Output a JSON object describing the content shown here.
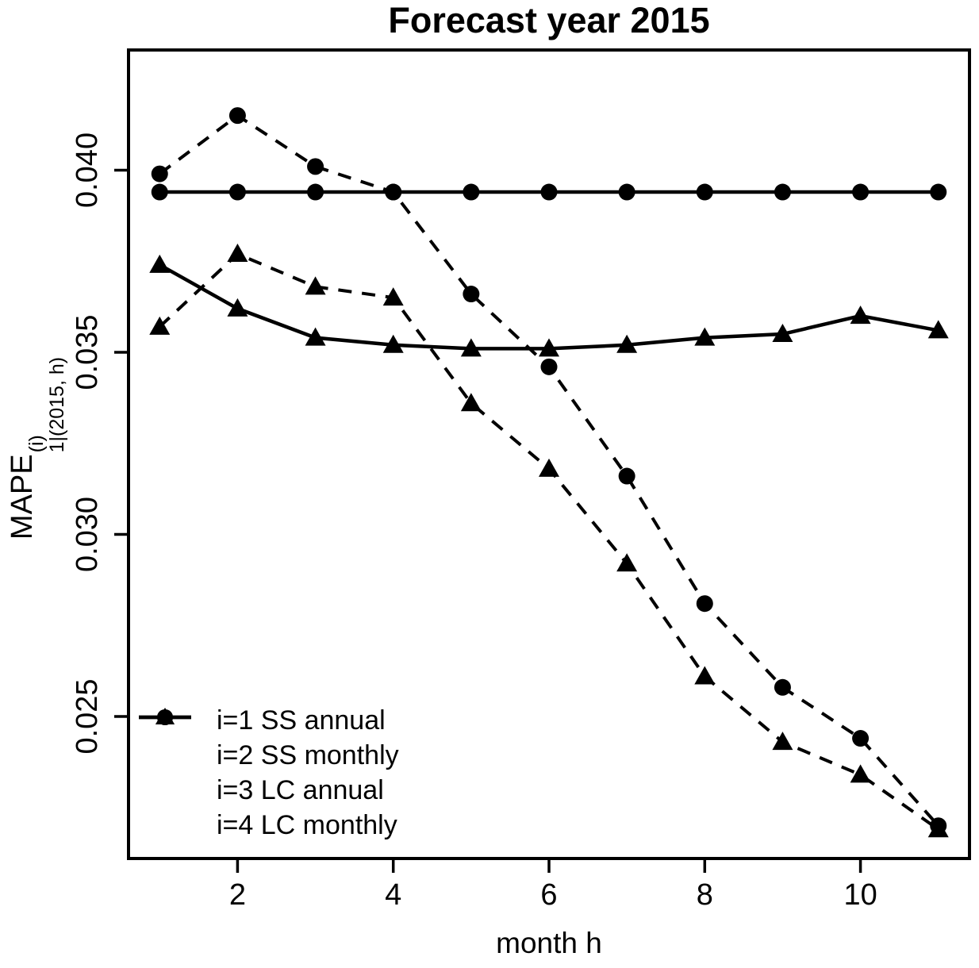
{
  "chart_data": {
    "type": "line",
    "title": "Forecast year 2015",
    "xlabel": "month h",
    "ylabel": {
      "base": "MAPE",
      "sup": "(i)",
      "sub": "1|(2015, h)"
    },
    "x": [
      1,
      2,
      3,
      4,
      5,
      6,
      7,
      8,
      9,
      10,
      11
    ],
    "xlim": [
      0.6,
      11.4
    ],
    "ylim": [
      0.0211,
      0.0433
    ],
    "xticks": [
      2,
      4,
      6,
      8,
      10
    ],
    "yticks": [
      0.025,
      0.03,
      0.035,
      0.04
    ],
    "ytick_labels": [
      "0.025",
      "0.030",
      "0.035",
      "0.040"
    ],
    "grid": false,
    "color": "#000000",
    "background": "#ffffff",
    "legend_position": "bottom-left",
    "series": [
      {
        "name": "i=1 SS annual",
        "line": "solid",
        "marker": "triangle",
        "values": [
          0.0374,
          0.0362,
          0.0354,
          0.0352,
          0.0351,
          0.0351,
          0.0352,
          0.0354,
          0.0355,
          0.036,
          0.0356
        ]
      },
      {
        "name": "i=2 SS monthly",
        "line": "dashed",
        "marker": "triangle",
        "values": [
          0.0357,
          0.0377,
          0.0368,
          0.0365,
          0.0336,
          0.0318,
          0.0292,
          0.0261,
          0.0243,
          0.0234,
          0.0219
        ]
      },
      {
        "name": "i=3 LC annual",
        "line": "solid",
        "marker": "circle",
        "values": [
          0.0394,
          0.0394,
          0.0394,
          0.0394,
          0.0394,
          0.0394,
          0.0394,
          0.0394,
          0.0394,
          0.0394,
          0.0394
        ]
      },
      {
        "name": "i=4 LC monthly",
        "line": "dashed",
        "marker": "circle",
        "values": [
          0.0399,
          0.0415,
          0.0401,
          0.0394,
          0.0366,
          0.0346,
          0.0316,
          0.0281,
          0.0258,
          0.0244,
          0.022
        ]
      }
    ]
  }
}
